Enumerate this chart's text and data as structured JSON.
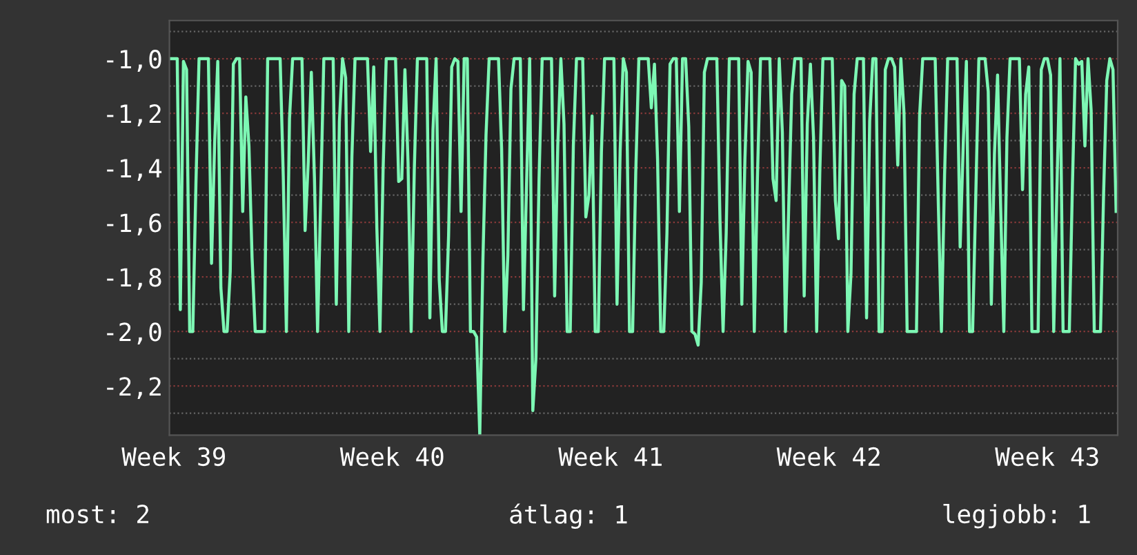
{
  "chart_data": {
    "type": "line",
    "categories": [
      null,
      "Week 39",
      null,
      null,
      null,
      null,
      null,
      null,
      null,
      null,
      null,
      null,
      null,
      null,
      null,
      null,
      null,
      null,
      null,
      null,
      null,
      null,
      null,
      null,
      null,
      null,
      null,
      null,
      null,
      null,
      null,
      null,
      null,
      null,
      null,
      null,
      null,
      null,
      null,
      null,
      null,
      null,
      null,
      null,
      null,
      null,
      null,
      null,
      null,
      null,
      null,
      null,
      null,
      null,
      null,
      null,
      null,
      null,
      null,
      null,
      null,
      null,
      null,
      null,
      null,
      null,
      null,
      null,
      null,
      null,
      null,
      "Week 40",
      null,
      null,
      null,
      null,
      null,
      null,
      null,
      null,
      null,
      null,
      null,
      null,
      null,
      null,
      null,
      null,
      null,
      null,
      null,
      null,
      null,
      null,
      null,
      null,
      null,
      null,
      null,
      null,
      null,
      null,
      null,
      null,
      null,
      null,
      null,
      null,
      null,
      null,
      null,
      null,
      null,
      null,
      null,
      null,
      null,
      null,
      null,
      null,
      null,
      null,
      null,
      null,
      null,
      null,
      null,
      null,
      null,
      null,
      null,
      null,
      null,
      null,
      null,
      null,
      null,
      null,
      null,
      null,
      null,
      "Week 41",
      null,
      null,
      null,
      null,
      null,
      null,
      null,
      null,
      null,
      null,
      null,
      null,
      null,
      null,
      null,
      null,
      null,
      null,
      null,
      null,
      null,
      null,
      null,
      null,
      null,
      null,
      null,
      null,
      null,
      null,
      null,
      null,
      null,
      null,
      null,
      null,
      null,
      null,
      null,
      null,
      null,
      null,
      null,
      null,
      null,
      null,
      null,
      null,
      null,
      null,
      null,
      null,
      null,
      null,
      null,
      null,
      null,
      null,
      null,
      null,
      null,
      null,
      null,
      null,
      null,
      null,
      null,
      null,
      null,
      "Week 42",
      null,
      null,
      null,
      null,
      null,
      null,
      null,
      null,
      null,
      null,
      null,
      null,
      null,
      null,
      null,
      null,
      null,
      null,
      null,
      null,
      null,
      null,
      null,
      null,
      null,
      null,
      null,
      null,
      null,
      null,
      null,
      null,
      null,
      null,
      null,
      null,
      null,
      null,
      null,
      null,
      null,
      null,
      null,
      null,
      null,
      null,
      null,
      null,
      null,
      null,
      null,
      null,
      null,
      null,
      null,
      null,
      null,
      null,
      null,
      null,
      null,
      null,
      null,
      null,
      null,
      null,
      null,
      null,
      null,
      "Week 43",
      null,
      null,
      null,
      null,
      null,
      null,
      null,
      null,
      null,
      null,
      null,
      null,
      null,
      null,
      null,
      null,
      null,
      null,
      null,
      null,
      null,
      null
    ],
    "series": [
      {
        "color": "#7df7b4",
        "values": [
          -1.0,
          -1.0,
          -1.0,
          -1.92,
          -1.01,
          -1.04,
          -2.0,
          -2.0,
          -1.46,
          -1.0,
          -1.0,
          -1.0,
          -1.0,
          -1.75,
          -1.31,
          -1.01,
          -1.84,
          -2.0,
          -2.0,
          -1.78,
          -1.02,
          -1.0,
          -1.0,
          -1.56,
          -1.14,
          -1.32,
          -1.73,
          -2.0,
          -2.0,
          -2.0,
          -2.0,
          -1.0,
          -1.0,
          -1.0,
          -1.0,
          -1.0,
          -1.43,
          -2.0,
          -1.22,
          -1.0,
          -1.0,
          -1.0,
          -1.0,
          -1.63,
          -1.38,
          -1.05,
          -1.44,
          -2.0,
          -1.51,
          -1.0,
          -1.0,
          -1.0,
          -1.0,
          -1.9,
          -1.23,
          -1.0,
          -1.07,
          -2.0,
          -1.36,
          -1.0,
          -1.0,
          -1.0,
          -1.0,
          -1.0,
          -1.34,
          -1.03,
          -1.62,
          -2.0,
          -1.41,
          -1.0,
          -1.0,
          -1.0,
          -1.0,
          -1.45,
          -1.44,
          -1.04,
          -1.38,
          -2.0,
          -1.41,
          -1.0,
          -1.0,
          -1.0,
          -1.0,
          -1.95,
          -1.26,
          -1.0,
          -1.81,
          -2.0,
          -2.0,
          -1.65,
          -1.03,
          -1.0,
          -1.01,
          -1.56,
          -1.0,
          -1.0,
          -2.0,
          -2.0,
          -2.02,
          -2.38,
          -1.74,
          -1.28,
          -1.0,
          -1.0,
          -1.0,
          -1.0,
          -1.33,
          -2.0,
          -1.72,
          -1.11,
          -1.0,
          -1.0,
          -1.0,
          -1.92,
          -1.46,
          -1.0,
          -2.29,
          -2.1,
          -1.44,
          -1.0,
          -1.0,
          -1.0,
          -1.0,
          -1.87,
          -1.32,
          -1.0,
          -1.24,
          -2.0,
          -2.0,
          -1.32,
          -1.0,
          -1.0,
          -1.0,
          -1.58,
          -1.5,
          -1.21,
          -2.0,
          -2.0,
          -1.34,
          -1.0,
          -1.0,
          -1.0,
          -1.0,
          -1.9,
          -1.34,
          -1.0,
          -1.05,
          -2.0,
          -2.0,
          -1.42,
          -1.0,
          -1.0,
          -1.0,
          -1.0,
          -1.18,
          -1.02,
          -1.37,
          -2.0,
          -2.0,
          -1.64,
          -1.02,
          -1.0,
          -1.0,
          -1.56,
          -1.0,
          -1.0,
          -1.25,
          -2.0,
          -2.01,
          -2.05,
          -1.82,
          -1.05,
          -1.0,
          -1.0,
          -1.0,
          -1.0,
          -1.59,
          -2.0,
          -1.64,
          -1.0,
          -1.0,
          -1.0,
          -1.0,
          -1.9,
          -1.37,
          -1.01,
          -1.05,
          -2.0,
          -1.44,
          -1.0,
          -1.0,
          -1.0,
          -1.0,
          -1.44,
          -1.52,
          -1.0,
          -1.27,
          -2.0,
          -1.56,
          -1.13,
          -1.0,
          -1.0,
          -1.0,
          -1.87,
          -1.24,
          -1.02,
          -1.29,
          -2.0,
          -1.42,
          -1.0,
          -1.0,
          -1.0,
          -1.0,
          -1.52,
          -1.66,
          -1.08,
          -1.1,
          -2.0,
          -1.79,
          -1.13,
          -1.0,
          -1.0,
          -1.0,
          -1.95,
          -1.23,
          -1.0,
          -1.0,
          -2.0,
          -2.0,
          -1.04,
          -1.0,
          -1.0,
          -1.03,
          -1.39,
          -1.0,
          -1.2,
          -2.0,
          -2.0,
          -2.0,
          -2.0,
          -1.21,
          -1.0,
          -1.0,
          -1.0,
          -1.0,
          -1.0,
          -1.53,
          -2.0,
          -1.43,
          -1.0,
          -1.0,
          -1.0,
          -1.0,
          -1.69,
          -1.31,
          -1.01,
          -2.0,
          -2.0,
          -1.51,
          -1.0,
          -1.0,
          -1.0,
          -1.12,
          -1.9,
          -1.35,
          -1.06,
          -1.55,
          -2.0,
          -1.29,
          -1.0,
          -1.0,
          -1.0,
          -1.0,
          -1.48,
          -1.13,
          -1.03,
          -2.0,
          -2.0,
          -2.0,
          -1.04,
          -1.0,
          -1.0,
          -1.06,
          -2.0,
          -1.49,
          -1.0,
          -2.0,
          -2.0,
          -2.0,
          -1.46,
          -1.0,
          -1.02,
          -1.01,
          -1.32,
          -1.0,
          -1.19,
          -2.0,
          -2.0,
          -2.0,
          -1.49,
          -1.08,
          -1.0,
          -1.04,
          -1.56
        ]
      }
    ],
    "ylim": [
      -2.38,
      -0.86
    ],
    "yticks": [
      {
        "value": -1.0,
        "label": "-1,0"
      },
      {
        "value": -1.2,
        "label": "-1,2"
      },
      {
        "value": -1.4,
        "label": "-1,4"
      },
      {
        "value": -1.6,
        "label": "-1,6"
      },
      {
        "value": -1.8,
        "label": "-1,8"
      },
      {
        "value": -2.0,
        "label": "-2,0"
      },
      {
        "value": -2.2,
        "label": "-2,2"
      },
      {
        "value": -0.9,
        "label": null
      },
      {
        "value": -1.1,
        "label": null
      },
      {
        "value": -1.3,
        "label": null
      },
      {
        "value": -1.5,
        "label": null
      },
      {
        "value": -1.7,
        "label": null
      },
      {
        "value": -1.9,
        "label": null
      },
      {
        "value": -2.1,
        "label": null
      },
      {
        "value": -2.3,
        "label": null
      }
    ],
    "grid": "y",
    "marker": "none",
    "line_style": "solid",
    "annotations": [
      "most: 2",
      "átlag: 1",
      "legjobb: 1"
    ]
  }
}
